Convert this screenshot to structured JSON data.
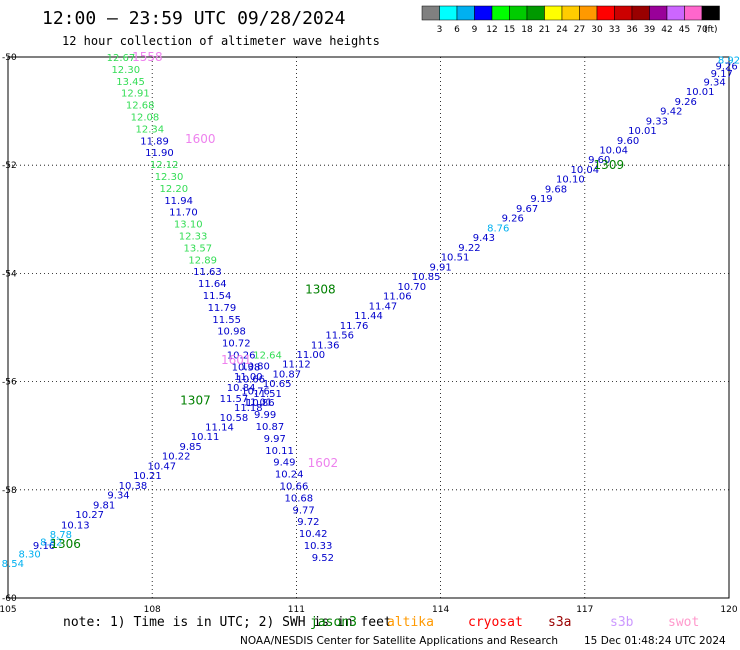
{
  "title": "12:00 — 23:59 UTC 09/28/2024",
  "subtitle": "12 hour collection of altimeter wave heights",
  "colorbar": {
    "colors": [
      "#808080",
      "#00ffff",
      "#00b0f0",
      "#0000ff",
      "#00ff00",
      "#00cc00",
      "#009900",
      "#ffff00",
      "#ffcc00",
      "#ff9900",
      "#ff0000",
      "#cc0000",
      "#990000",
      "#990099",
      "#cc66ff",
      "#ff66cc",
      "#000000"
    ],
    "labels": [
      "3",
      "6",
      "9",
      "12",
      "15",
      "18",
      "21",
      "24",
      "27",
      "30",
      "33",
      "36",
      "39",
      "42",
      "45",
      "70"
    ],
    "unit": "(ft)"
  },
  "chart_data": {
    "type": "scatter",
    "projection": "map",
    "xlim": [
      105,
      120
    ],
    "ylim": [
      -60,
      -50
    ],
    "grid": true,
    "x_ticks": [
      "105",
      "108",
      "111",
      "114",
      "117",
      "120"
    ],
    "y_ticks": [
      "-50",
      "-52",
      "-54",
      "-56",
      "-58",
      "-60"
    ],
    "passes": [
      {
        "label": "1558",
        "label_lon": 107.9,
        "label_lat": -50.0,
        "color": "#ee82ee",
        "points": [
          {
            "lon": 107.35,
            "lat": -50.0,
            "v": "12.67"
          },
          {
            "lon": 107.45,
            "lat": -50.22,
            "v": "12.30"
          },
          {
            "lon": 107.55,
            "lat": -50.44,
            "v": "13.45"
          },
          {
            "lon": 107.65,
            "lat": -50.66,
            "v": "12.91"
          },
          {
            "lon": 107.75,
            "lat": -50.88,
            "v": "12.68"
          },
          {
            "lon": 107.85,
            "lat": -51.1,
            "v": "12.08"
          },
          {
            "lon": 107.95,
            "lat": -51.32,
            "v": "12.34"
          }
        ]
      },
      {
        "label": "1600",
        "label_lon": 109.0,
        "label_lat": -51.52,
        "color": "#ee82ee",
        "points": [
          {
            "lon": 108.05,
            "lat": -51.54,
            "v": "11.89"
          },
          {
            "lon": 108.15,
            "lat": -51.76,
            "v": "11.90"
          },
          {
            "lon": 108.25,
            "lat": -51.98,
            "v": "12.12"
          },
          {
            "lon": 108.35,
            "lat": -52.2,
            "v": "12.30"
          },
          {
            "lon": 108.45,
            "lat": -52.42,
            "v": "12.20"
          },
          {
            "lon": 108.55,
            "lat": -52.64,
            "v": "11.94"
          },
          {
            "lon": 108.65,
            "lat": -52.86,
            "v": "11.70"
          },
          {
            "lon": 108.75,
            "lat": -53.08,
            "v": "13.10"
          },
          {
            "lon": 108.85,
            "lat": -53.3,
            "v": "12.33"
          },
          {
            "lon": 108.95,
            "lat": -53.52,
            "v": "13.57"
          },
          {
            "lon": 109.05,
            "lat": -53.74,
            "v": "12.89"
          },
          {
            "lon": 109.15,
            "lat": -53.96,
            "v": "11.63"
          },
          {
            "lon": 109.25,
            "lat": -54.18,
            "v": "11.64"
          },
          {
            "lon": 109.35,
            "lat": -54.4,
            "v": "11.54"
          },
          {
            "lon": 109.45,
            "lat": -54.62,
            "v": "11.79"
          },
          {
            "lon": 109.55,
            "lat": -54.84,
            "v": "11.55"
          },
          {
            "lon": 109.65,
            "lat": -55.06,
            "v": "10.98"
          },
          {
            "lon": 109.75,
            "lat": -55.28,
            "v": "10.72"
          },
          {
            "lon": 109.85,
            "lat": -55.5,
            "v": "10.26"
          },
          {
            "lon": 109.95,
            "lat": -55.72,
            "v": "10.38"
          },
          {
            "lon": 110.05,
            "lat": -55.94,
            "v": "10.66"
          },
          {
            "lon": 110.15,
            "lat": -56.16,
            "v": "10.76"
          },
          {
            "lon": 110.25,
            "lat": -56.38,
            "v": "10.86"
          },
          {
            "lon": 110.35,
            "lat": -56.6,
            "v": "9.99"
          },
          {
            "lon": 110.45,
            "lat": -56.82,
            "v": "10.87"
          },
          {
            "lon": 110.55,
            "lat": -57.04,
            "v": "9.97"
          },
          {
            "lon": 110.65,
            "lat": -57.26,
            "v": "10.11"
          }
        ]
      },
      {
        "label": "1601",
        "label_lon": 109.75,
        "label_lat": -55.6,
        "color": "#ee82ee",
        "points": [
          {
            "lon": 110.4,
            "lat": -55.5,
            "v": "12.64"
          },
          {
            "lon": 110.15,
            "lat": -55.7,
            "v": "10.80"
          },
          {
            "lon": 110.0,
            "lat": -55.9,
            "v": "11.00"
          },
          {
            "lon": 109.85,
            "lat": -56.1,
            "v": "10.84"
          },
          {
            "lon": 109.7,
            "lat": -56.3,
            "v": "11.57"
          }
        ]
      },
      {
        "label": "1602",
        "label_lon": 111.55,
        "label_lat": -57.5,
        "color": "#ee82ee",
        "points": [
          {
            "lon": 110.75,
            "lat": -57.48,
            "v": "9.49"
          },
          {
            "lon": 110.85,
            "lat": -57.7,
            "v": "10.24"
          },
          {
            "lon": 110.95,
            "lat": -57.92,
            "v": "10.66"
          },
          {
            "lon": 111.05,
            "lat": -58.14,
            "v": "10.68"
          },
          {
            "lon": 111.15,
            "lat": -58.36,
            "v": "9.77"
          },
          {
            "lon": 111.25,
            "lat": -58.58,
            "v": "9.72"
          },
          {
            "lon": 111.35,
            "lat": -58.8,
            "v": "10.42"
          },
          {
            "lon": 111.45,
            "lat": -59.02,
            "v": "10.33"
          },
          {
            "lon": 111.55,
            "lat": -59.24,
            "v": "9.52"
          }
        ]
      },
      {
        "label": "1306",
        "label_lon": 106.2,
        "label_lat": -59.0,
        "color": "#008000",
        "points": [
          {
            "lon": 105.1,
            "lat": -59.35,
            "v": "8.54"
          },
          {
            "lon": 105.45,
            "lat": -59.18,
            "v": "8.30"
          },
          {
            "lon": 105.75,
            "lat": -59.02,
            "v": "9.16"
          },
          {
            "lon": 105.9,
            "lat": -58.96,
            "v": "8.82"
          },
          {
            "lon": 106.1,
            "lat": -58.82,
            "v": "8.78"
          },
          {
            "lon": 106.4,
            "lat": -58.64,
            "v": "10.13"
          },
          {
            "lon": 106.7,
            "lat": -58.45,
            "v": "10.27"
          },
          {
            "lon": 107.0,
            "lat": -58.27,
            "v": "9.81"
          },
          {
            "lon": 107.3,
            "lat": -58.09,
            "v": "9.34"
          },
          {
            "lon": 107.6,
            "lat": -57.91,
            "v": "10.38"
          },
          {
            "lon": 107.9,
            "lat": -57.73,
            "v": "10.21"
          }
        ]
      },
      {
        "label": "1307",
        "label_lon": 108.9,
        "label_lat": -56.35,
        "color": "#008000",
        "points": [
          {
            "lon": 108.2,
            "lat": -57.55,
            "v": "10.47"
          },
          {
            "lon": 108.5,
            "lat": -57.37,
            "v": "10.22"
          },
          {
            "lon": 108.8,
            "lat": -57.19,
            "v": "9.85"
          },
          {
            "lon": 109.1,
            "lat": -57.01,
            "v": "10.11"
          },
          {
            "lon": 109.4,
            "lat": -56.83,
            "v": "11.14"
          },
          {
            "lon": 109.7,
            "lat": -56.65,
            "v": "10.58"
          },
          {
            "lon": 110.0,
            "lat": -56.47,
            "v": "11.18"
          },
          {
            "lon": 110.2,
            "lat": -56.37,
            "v": "11.01"
          },
          {
            "lon": 110.4,
            "lat": -56.21,
            "v": "11.51"
          },
          {
            "lon": 110.6,
            "lat": -56.03,
            "v": "10.65"
          },
          {
            "lon": 110.8,
            "lat": -55.85,
            "v": "10.87"
          },
          {
            "lon": 111.0,
            "lat": -55.67,
            "v": "11.12"
          }
        ]
      },
      {
        "label": "1308",
        "label_lon": 111.5,
        "label_lat": -54.3,
        "color": "#008000",
        "points": [
          {
            "lon": 111.3,
            "lat": -55.49,
            "v": "11.00"
          },
          {
            "lon": 111.6,
            "lat": -55.31,
            "v": "11.36"
          },
          {
            "lon": 111.9,
            "lat": -55.13,
            "v": "11.56"
          },
          {
            "lon": 112.2,
            "lat": -54.95,
            "v": "11.76"
          },
          {
            "lon": 112.5,
            "lat": -54.77,
            "v": "11.44"
          },
          {
            "lon": 112.8,
            "lat": -54.59,
            "v": "11.47"
          },
          {
            "lon": 113.1,
            "lat": -54.41,
            "v": "11.06"
          },
          {
            "lon": 113.4,
            "lat": -54.23,
            "v": "10.70"
          },
          {
            "lon": 113.7,
            "lat": -54.05,
            "v": "10.85"
          },
          {
            "lon": 114.0,
            "lat": -53.87,
            "v": "9.91"
          },
          {
            "lon": 114.3,
            "lat": -53.69,
            "v": "10.51"
          },
          {
            "lon": 114.6,
            "lat": -53.51,
            "v": "9.22"
          },
          {
            "lon": 114.9,
            "lat": -53.33,
            "v": "9.43"
          }
        ]
      },
      {
        "label": "1309",
        "label_lon": 117.5,
        "label_lat": -52.0,
        "color": "#008000",
        "points": [
          {
            "lon": 115.2,
            "lat": -53.15,
            "v": "8.76"
          },
          {
            "lon": 115.5,
            "lat": -52.97,
            "v": "9.26"
          },
          {
            "lon": 115.8,
            "lat": -52.79,
            "v": "9.67"
          },
          {
            "lon": 116.1,
            "lat": -52.61,
            "v": "9.19"
          },
          {
            "lon": 116.4,
            "lat": -52.43,
            "v": "9.68"
          },
          {
            "lon": 116.7,
            "lat": -52.25,
            "v": "10.10"
          },
          {
            "lon": 117.0,
            "lat": -52.07,
            "v": "10.04"
          },
          {
            "lon": 117.3,
            "lat": -51.89,
            "v": "9.60"
          },
          {
            "lon": 117.6,
            "lat": -51.71,
            "v": "10.04"
          },
          {
            "lon": 117.9,
            "lat": -51.53,
            "v": "9.60"
          },
          {
            "lon": 118.2,
            "lat": -51.35,
            "v": "10.01"
          },
          {
            "lon": 118.5,
            "lat": -51.17,
            "v": "9.33"
          },
          {
            "lon": 118.8,
            "lat": -50.99,
            "v": "9.42"
          },
          {
            "lon": 119.1,
            "lat": -50.81,
            "v": "9.26"
          },
          {
            "lon": 119.4,
            "lat": -50.63,
            "v": "10.01"
          },
          {
            "lon": 119.7,
            "lat": -50.45,
            "v": "9.34"
          },
          {
            "lon": 119.85,
            "lat": -50.3,
            "v": "9.17"
          },
          {
            "lon": 119.95,
            "lat": -50.16,
            "v": "9.26"
          },
          {
            "lon": 120.0,
            "lat": -50.05,
            "v": "8.92"
          }
        ]
      }
    ]
  },
  "note": "note: 1) Time is in UTC; 2) SWH is in feet",
  "missions": [
    {
      "name": "jason3",
      "color": "#008000"
    },
    {
      "name": "altika",
      "color": "#ff9900"
    },
    {
      "name": "cryosat",
      "color": "#ff0000"
    },
    {
      "name": "s3a",
      "color": "#990000"
    },
    {
      "name": "s3b",
      "color": "#cc99ff"
    },
    {
      "name": "swot",
      "color": "#ff99cc"
    }
  ],
  "footer": {
    "center": "NOAA/NESDIS Center for Satellite Applications and Research",
    "stamp": "15 Dec 01:48:24 UTC 2024"
  }
}
